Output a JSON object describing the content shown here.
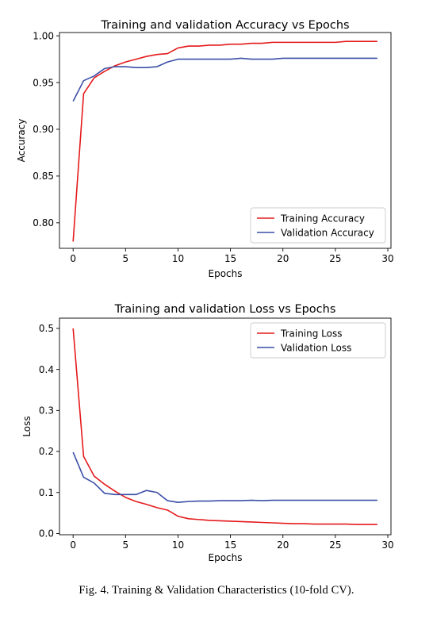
{
  "caption": "Fig. 4.   Training & Validation Characteristics (10-fold CV).",
  "chart_data": [
    {
      "type": "line",
      "title": "Training and validation Accuracy vs Epochs",
      "xlabel": "Epochs",
      "ylabel": "Accuracy",
      "xlim": [
        -1.3,
        30.3
      ],
      "ylim": [
        0.7727,
        1.0035
      ],
      "xticks": [
        0,
        5,
        10,
        15,
        20,
        25,
        30
      ],
      "yticks": [
        0.8,
        0.85,
        0.9,
        0.95,
        1.0
      ],
      "ytick_labels": [
        "0.80",
        "0.85",
        "0.90",
        "0.95",
        "1.00"
      ],
      "legend_position": "lower-right",
      "grid": false,
      "x": [
        0,
        1,
        2,
        3,
        4,
        5,
        6,
        7,
        8,
        9,
        10,
        11,
        12,
        13,
        14,
        15,
        16,
        17,
        18,
        19,
        20,
        21,
        22,
        23,
        24,
        25,
        26,
        27,
        28,
        29
      ],
      "series": [
        {
          "name": "Training Accuracy",
          "color": "#e41a1c",
          "values": [
            0.78,
            0.938,
            0.955,
            0.962,
            0.968,
            0.972,
            0.975,
            0.978,
            0.98,
            0.981,
            0.987,
            0.989,
            0.989,
            0.99,
            0.99,
            0.991,
            0.991,
            0.992,
            0.992,
            0.993,
            0.993,
            0.993,
            0.993,
            0.993,
            0.993,
            0.993,
            0.994,
            0.994,
            0.994,
            0.994
          ]
        },
        {
          "name": "Validation Accuracy",
          "color": "#3a4fa6",
          "values": [
            0.93,
            0.952,
            0.957,
            0.965,
            0.967,
            0.967,
            0.966,
            0.966,
            0.967,
            0.972,
            0.975,
            0.975,
            0.975,
            0.975,
            0.975,
            0.975,
            0.976,
            0.975,
            0.975,
            0.975,
            0.976,
            0.976,
            0.976,
            0.976,
            0.976,
            0.976,
            0.976,
            0.976,
            0.976,
            0.976
          ]
        }
      ]
    },
    {
      "type": "line",
      "title": "Training and validation Loss vs Epochs",
      "xlabel": "Epochs",
      "ylabel": "Loss",
      "xlim": [
        -1.3,
        30.3
      ],
      "ylim": [
        -0.003,
        0.525
      ],
      "xticks": [
        0,
        5,
        10,
        15,
        20,
        25,
        30
      ],
      "yticks": [
        0.0,
        0.1,
        0.2,
        0.3,
        0.4,
        0.5
      ],
      "ytick_labels": [
        "0.0",
        "0.1",
        "0.2",
        "0.3",
        "0.4",
        "0.5"
      ],
      "legend_position": "upper-right",
      "grid": false,
      "x": [
        0,
        1,
        2,
        3,
        4,
        5,
        6,
        7,
        8,
        9,
        10,
        11,
        12,
        13,
        14,
        15,
        16,
        17,
        18,
        19,
        20,
        21,
        22,
        23,
        24,
        25,
        26,
        27,
        28,
        29
      ],
      "series": [
        {
          "name": "Training Loss",
          "color": "#e41a1c",
          "values": [
            0.5,
            0.188,
            0.14,
            0.12,
            0.103,
            0.088,
            0.078,
            0.071,
            0.063,
            0.057,
            0.042,
            0.036,
            0.034,
            0.032,
            0.031,
            0.03,
            0.029,
            0.028,
            0.027,
            0.026,
            0.025,
            0.024,
            0.024,
            0.023,
            0.023,
            0.023,
            0.023,
            0.022,
            0.022,
            0.022
          ]
        },
        {
          "name": "Validation Loss",
          "color": "#3a4fa6",
          "values": [
            0.198,
            0.137,
            0.123,
            0.098,
            0.095,
            0.095,
            0.095,
            0.105,
            0.1,
            0.08,
            0.076,
            0.078,
            0.079,
            0.079,
            0.08,
            0.08,
            0.08,
            0.081,
            0.08,
            0.081,
            0.081,
            0.081,
            0.081,
            0.081,
            0.081,
            0.081,
            0.081,
            0.081,
            0.081,
            0.081
          ]
        }
      ]
    }
  ]
}
